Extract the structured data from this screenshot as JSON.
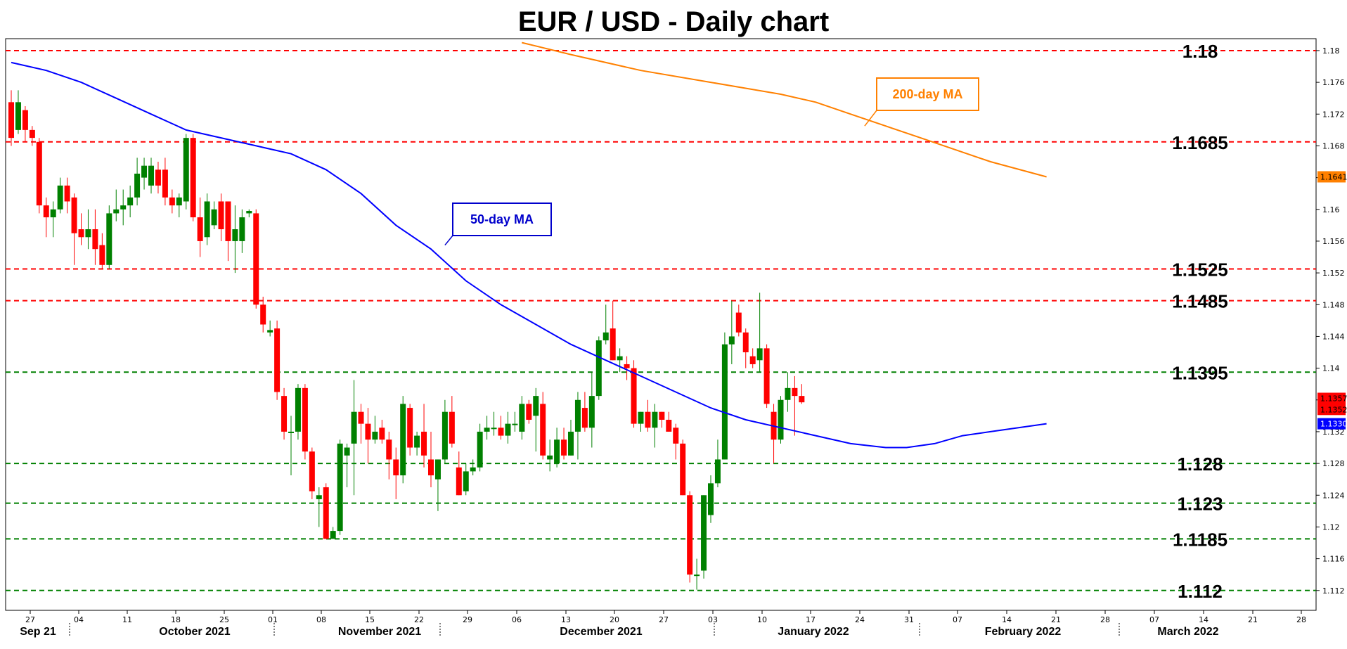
{
  "chart_data": {
    "type": "candlestick",
    "title": "EUR / USD - Daily chart",
    "ylim": [
      1.1095,
      1.1815
    ],
    "y_ticks": [
      "1.112",
      "1.116",
      "1.12",
      "1.124",
      "1.128",
      "1.132",
      "1.136",
      "1.14",
      "1.144",
      "1.148",
      "1.152",
      "1.156",
      "1.16",
      "1.164",
      "1.168",
      "1.172",
      "1.176",
      "1.18"
    ],
    "x_ticks": [
      "27",
      "04",
      "11",
      "18",
      "25",
      "01",
      "08",
      "15",
      "22",
      "29",
      "06",
      "13",
      "20",
      "27",
      "03",
      "10",
      "17",
      "24",
      "31",
      "07",
      "14",
      "21",
      "28",
      "07",
      "14",
      "21",
      "28"
    ],
    "months": [
      "Sep 21",
      "October 2021",
      "November 2021",
      "December 2021",
      "January 2022",
      "February 2022",
      "March 2022"
    ],
    "levels": [
      {
        "value": 1.18,
        "label": "1.18",
        "color": "#ff0000"
      },
      {
        "value": 1.1685,
        "label": "1.1685",
        "color": "#ff0000"
      },
      {
        "value": 1.1525,
        "label": "1.1525",
        "color": "#ff0000"
      },
      {
        "value": 1.1485,
        "label": "1.1485",
        "color": "#ff0000"
      },
      {
        "value": 1.1395,
        "label": "1.1395",
        "color": "#008000"
      },
      {
        "value": 1.128,
        "label": "1.128",
        "color": "#008000"
      },
      {
        "value": 1.123,
        "label": "1.123",
        "color": "#008000"
      },
      {
        "value": 1.1185,
        "label": "1.1185",
        "color": "#008000"
      },
      {
        "value": 1.112,
        "label": "1.112",
        "color": "#008000"
      }
    ],
    "candles": [
      [
        1.1735,
        1.175,
        1.168,
        1.169
      ],
      [
        1.17,
        1.175,
        1.1695,
        1.1735
      ],
      [
        1.1725,
        1.173,
        1.1685,
        1.17
      ],
      [
        1.17,
        1.1705,
        1.168,
        1.169
      ],
      [
        1.1685,
        1.169,
        1.1595,
        1.1605
      ],
      [
        1.1605,
        1.1615,
        1.1565,
        1.159
      ],
      [
        1.159,
        1.161,
        1.1565,
        1.16
      ],
      [
        1.16,
        1.164,
        1.1595,
        1.163
      ],
      [
        1.163,
        1.164,
        1.1595,
        1.161
      ],
      [
        1.1615,
        1.162,
        1.153,
        1.157
      ],
      [
        1.1575,
        1.1595,
        1.1555,
        1.1565
      ],
      [
        1.1565,
        1.16,
        1.155,
        1.1575
      ],
      [
        1.1575,
        1.16,
        1.153,
        1.155
      ],
      [
        1.1555,
        1.157,
        1.1525,
        1.153
      ],
      [
        1.153,
        1.1605,
        1.1525,
        1.1595
      ],
      [
        1.1595,
        1.1625,
        1.1585,
        1.16
      ],
      [
        1.16,
        1.1625,
        1.158,
        1.1605
      ],
      [
        1.1605,
        1.163,
        1.159,
        1.1615
      ],
      [
        1.1615,
        1.1665,
        1.1605,
        1.1645
      ],
      [
        1.164,
        1.1665,
        1.1625,
        1.1655
      ],
      [
        1.163,
        1.1665,
        1.162,
        1.1655
      ],
      [
        1.165,
        1.166,
        1.162,
        1.163
      ],
      [
        1.165,
        1.1665,
        1.1605,
        1.1615
      ],
      [
        1.1615,
        1.1625,
        1.1595,
        1.1605
      ],
      [
        1.1605,
        1.162,
        1.159,
        1.1615
      ],
      [
        1.161,
        1.1695,
        1.16,
        1.169
      ],
      [
        1.169,
        1.1695,
        1.1585,
        1.159
      ],
      [
        1.159,
        1.1615,
        1.154,
        1.156
      ],
      [
        1.1565,
        1.162,
        1.1555,
        1.161
      ],
      [
        1.158,
        1.161,
        1.1575,
        1.16
      ],
      [
        1.161,
        1.162,
        1.156,
        1.1575
      ],
      [
        1.161,
        1.161,
        1.1535,
        1.156
      ],
      [
        1.156,
        1.1605,
        1.152,
        1.1575
      ],
      [
        1.156,
        1.16,
        1.1545,
        1.159
      ],
      [
        1.1595,
        1.16,
        1.159,
        1.1598
      ],
      [
        1.1595,
        1.16,
        1.1475,
        1.148
      ],
      [
        1.148,
        1.149,
        1.1445,
        1.1455
      ],
      [
        1.1445,
        1.146,
        1.144,
        1.1448
      ],
      [
        1.145,
        1.146,
        1.136,
        1.137
      ],
      [
        1.1365,
        1.1375,
        1.131,
        1.132
      ],
      [
        1.132,
        1.134,
        1.1265,
        1.132
      ],
      [
        1.132,
        1.138,
        1.131,
        1.1375
      ],
      [
        1.1375,
        1.138,
        1.1285,
        1.1295
      ],
      [
        1.1295,
        1.13,
        1.1235,
        1.1245
      ],
      [
        1.1235,
        1.125,
        1.12,
        1.124
      ],
      [
        1.125,
        1.1255,
        1.1185,
        1.1185
      ],
      [
        1.1185,
        1.12,
        1.119,
        1.1195
      ],
      [
        1.1195,
        1.131,
        1.119,
        1.1305
      ],
      [
        1.129,
        1.1305,
        1.125,
        1.13
      ],
      [
        1.1305,
        1.1385,
        1.124,
        1.1345
      ],
      [
        1.1345,
        1.1355,
        1.1305,
        1.133
      ],
      [
        1.133,
        1.135,
        1.128,
        1.131
      ],
      [
        1.131,
        1.134,
        1.1305,
        1.132
      ],
      [
        1.1325,
        1.1335,
        1.1305,
        1.131
      ],
      [
        1.131,
        1.132,
        1.126,
        1.1285
      ],
      [
        1.1285,
        1.13,
        1.1235,
        1.1265
      ],
      [
        1.1265,
        1.1365,
        1.1255,
        1.1355
      ],
      [
        1.135,
        1.1355,
        1.129,
        1.13
      ],
      [
        1.13,
        1.132,
        1.129,
        1.1315
      ],
      [
        1.132,
        1.1355,
        1.1275,
        1.129
      ],
      [
        1.1285,
        1.132,
        1.125,
        1.1265
      ],
      [
        1.126,
        1.1285,
        1.122,
        1.1285
      ],
      [
        1.1285,
        1.136,
        1.128,
        1.1345
      ],
      [
        1.1345,
        1.1365,
        1.13,
        1.1305
      ],
      [
        1.1275,
        1.1295,
        1.124,
        1.124
      ],
      [
        1.1245,
        1.128,
        1.124,
        1.127
      ],
      [
        1.127,
        1.1285,
        1.1265,
        1.1275
      ],
      [
        1.1275,
        1.133,
        1.127,
        1.132
      ],
      [
        1.132,
        1.134,
        1.131,
        1.1325
      ],
      [
        1.1325,
        1.1345,
        1.1315,
        1.1325
      ],
      [
        1.1325,
        1.134,
        1.131,
        1.1315
      ],
      [
        1.1315,
        1.1345,
        1.1305,
        1.133
      ],
      [
        1.133,
        1.1345,
        1.132,
        1.133
      ],
      [
        1.132,
        1.1365,
        1.131,
        1.1355
      ],
      [
        1.1355,
        1.136,
        1.133,
        1.1335
      ],
      [
        1.134,
        1.1375,
        1.1295,
        1.1365
      ],
      [
        1.1355,
        1.137,
        1.1285,
        1.129
      ],
      [
        1.1285,
        1.131,
        1.127,
        1.129
      ],
      [
        1.128,
        1.1325,
        1.1275,
        1.131
      ],
      [
        1.131,
        1.1325,
        1.1285,
        1.129
      ],
      [
        1.129,
        1.1335,
        1.129,
        1.132
      ],
      [
        1.132,
        1.137,
        1.1285,
        1.136
      ],
      [
        1.135,
        1.137,
        1.132,
        1.1325
      ],
      [
        1.1325,
        1.1395,
        1.13,
        1.1365
      ],
      [
        1.1365,
        1.144,
        1.136,
        1.1435
      ],
      [
        1.1435,
        1.148,
        1.143,
        1.1445
      ],
      [
        1.145,
        1.1485,
        1.141,
        1.141
      ],
      [
        1.141,
        1.1425,
        1.1395,
        1.1415
      ],
      [
        1.1405,
        1.1415,
        1.1385,
        1.14
      ],
      [
        1.14,
        1.141,
        1.1325,
        1.133
      ],
      [
        1.133,
        1.1345,
        1.132,
        1.1345
      ],
      [
        1.1345,
        1.136,
        1.132,
        1.1325
      ],
      [
        1.1325,
        1.1355,
        1.13,
        1.1345
      ],
      [
        1.1345,
        1.1345,
        1.1325,
        1.1335
      ],
      [
        1.1335,
        1.1345,
        1.132,
        1.132
      ],
      [
        1.1325,
        1.133,
        1.1285,
        1.1305
      ],
      [
        1.1305,
        1.131,
        1.124,
        1.124
      ],
      [
        1.124,
        1.1245,
        1.113,
        1.114
      ],
      [
        1.114,
        1.116,
        1.1121,
        1.114
      ],
      [
        1.1145,
        1.124,
        1.1135,
        1.124
      ],
      [
        1.1215,
        1.1265,
        1.1205,
        1.1255
      ],
      [
        1.1255,
        1.131,
        1.125,
        1.1285
      ],
      [
        1.1285,
        1.1445,
        1.1285,
        1.143
      ],
      [
        1.143,
        1.1485,
        1.1405,
        1.144
      ],
      [
        1.147,
        1.148,
        1.144,
        1.1445
      ],
      [
        1.1445,
        1.145,
        1.14,
        1.142
      ],
      [
        1.1415,
        1.1425,
        1.14,
        1.1405
      ],
      [
        1.141,
        1.1495,
        1.1395,
        1.1425
      ],
      [
        1.1425,
        1.143,
        1.135,
        1.1355
      ],
      [
        1.1345,
        1.1355,
        1.128,
        1.131
      ],
      [
        1.131,
        1.1365,
        1.1305,
        1.136
      ],
      [
        1.136,
        1.1395,
        1.1345,
        1.1375
      ],
      [
        1.1375,
        1.139,
        1.1315,
        1.1365
      ],
      [
        1.1365,
        1.138,
        1.1355,
        1.1357
      ]
    ],
    "ma50": {
      "name": "50-day MA",
      "color": "#0000ff",
      "points": [
        [
          0,
          1.1785
        ],
        [
          5,
          1.1775
        ],
        [
          10,
          1.176
        ],
        [
          15,
          1.174
        ],
        [
          20,
          1.172
        ],
        [
          25,
          1.17
        ],
        [
          30,
          1.169
        ],
        [
          35,
          1.168
        ],
        [
          40,
          1.167
        ],
        [
          45,
          1.165
        ],
        [
          50,
          1.162
        ],
        [
          55,
          1.158
        ],
        [
          60,
          1.155
        ],
        [
          65,
          1.151
        ],
        [
          70,
          1.148
        ],
        [
          75,
          1.1455
        ],
        [
          80,
          1.143
        ],
        [
          85,
          1.141
        ],
        [
          90,
          1.139
        ],
        [
          95,
          1.137
        ],
        [
          100,
          1.135
        ],
        [
          105,
          1.1335
        ],
        [
          110,
          1.1325
        ],
        [
          115,
          1.1315
        ],
        [
          120,
          1.1305
        ],
        [
          125,
          1.13
        ],
        [
          128,
          1.13
        ],
        [
          132,
          1.1305
        ],
        [
          136,
          1.1315
        ],
        [
          140,
          1.132
        ],
        [
          144,
          1.1325
        ],
        [
          148,
          1.133
        ]
      ]
    },
    "ma200": {
      "name": "200-day MA",
      "color": "#ff8000",
      "points": [
        [
          73,
          1.181
        ],
        [
          80,
          1.1795
        ],
        [
          90,
          1.1775
        ],
        [
          100,
          1.176
        ],
        [
          110,
          1.1745
        ],
        [
          115,
          1.1735
        ],
        [
          120,
          1.172
        ],
        [
          125,
          1.1705
        ],
        [
          130,
          1.169
        ],
        [
          135,
          1.1675
        ],
        [
          140,
          1.166
        ],
        [
          148,
          1.1641
        ]
      ]
    },
    "last_price_labels": [
      "1.1641",
      "1.1357",
      "1.1352",
      "1.1330"
    ],
    "annotations": [
      {
        "text": "50-day MA",
        "color": "#0000cc",
        "target_index": 62,
        "target_value": 1.1555
      },
      {
        "text": "200-day MA",
        "color": "#ff8000",
        "target_index": 122,
        "target_value": 1.1705
      }
    ],
    "bull_color": "#008000",
    "bear_color": "#ff0000",
    "grid": false
  }
}
